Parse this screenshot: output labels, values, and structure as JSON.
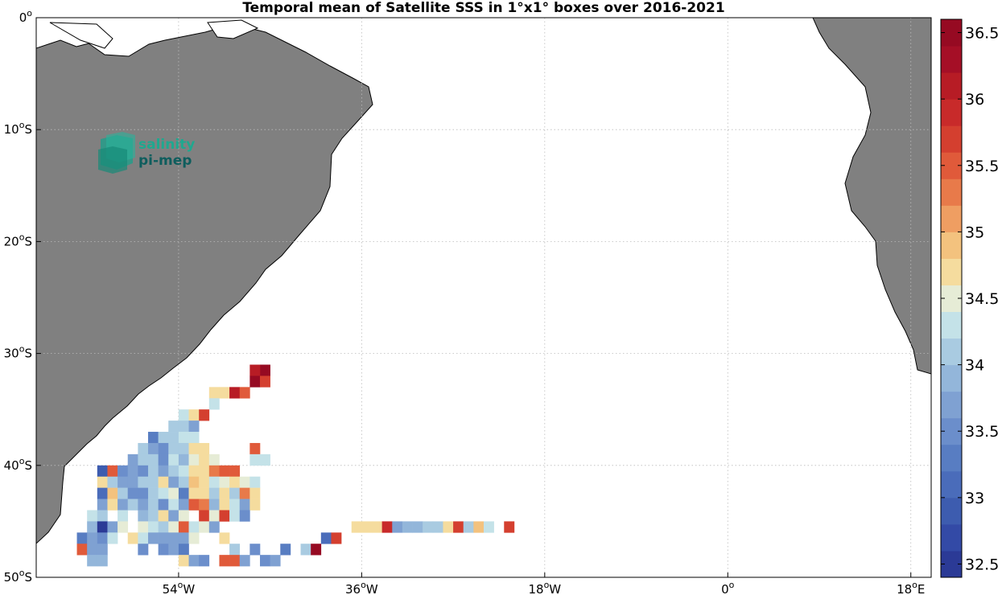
{
  "title": "Temporal mean of Satellite SSS in 1°x1° boxes over 2016-2021",
  "logo": {
    "line1": "salinity",
    "line2": "pi-mep"
  },
  "map": {
    "lon_range": [
      -68,
      20
    ],
    "lat_range": [
      -50,
      0
    ],
    "land_color": "#808080",
    "ocean_color": "#ffffff",
    "grid": "dotted",
    "x_ticks": [
      {
        "lon": -54,
        "label": "54",
        "sup": "o",
        "hemi": "W"
      },
      {
        "lon": -36,
        "label": "36",
        "sup": "o",
        "hemi": "W"
      },
      {
        "lon": -18,
        "label": "18",
        "sup": "o",
        "hemi": "W"
      },
      {
        "lon": 0,
        "label": "0",
        "sup": "o",
        "hemi": ""
      },
      {
        "lon": 18,
        "label": "18",
        "sup": "o",
        "hemi": "E"
      }
    ],
    "y_ticks": [
      {
        "lat": 0,
        "label": "0",
        "sup": "o",
        "hemi": ""
      },
      {
        "lat": -10,
        "label": "10",
        "sup": "o",
        "hemi": "S"
      },
      {
        "lat": -20,
        "label": "20",
        "sup": "o",
        "hemi": "S"
      },
      {
        "lat": -30,
        "label": "30",
        "sup": "o",
        "hemi": "S"
      },
      {
        "lat": -40,
        "label": "40",
        "sup": "o",
        "hemi": "S"
      },
      {
        "lat": -50,
        "label": "50",
        "sup": "o",
        "hemi": "S"
      }
    ]
  },
  "colorbar": {
    "min": 32.4,
    "max": 36.6,
    "step": 0.2,
    "tick_labels": [
      "32.5",
      "33",
      "33.5",
      "34",
      "34.5",
      "35",
      "35.5",
      "36",
      "36.5"
    ],
    "colors": [
      "#2b3a96",
      "#334aa6",
      "#3d5caf",
      "#4a6cba",
      "#587dc2",
      "#6b8ecb",
      "#7fa1d2",
      "#93b6da",
      "#a9cbe1",
      "#c4e2e8",
      "#e6ecd6",
      "#f5dc9e",
      "#f3c27e",
      "#ef9e62",
      "#e87a4a",
      "#e05a3a",
      "#d43f2f",
      "#c82a2a",
      "#b71c25",
      "#a50f26",
      "#960a22"
    ]
  },
  "chart_data": {
    "type": "heatmap",
    "title": "Temporal mean of Satellite SSS in 1°x1° boxes over 2016-2021",
    "value_unit": "SSS",
    "cell_size_deg": 1,
    "cells": [
      [
        -45.5,
        -31.5,
        36.6
      ],
      [
        -46.5,
        -31.5,
        36.0
      ],
      [
        -46.5,
        -32.5,
        36.5
      ],
      [
        -45.5,
        -32.5,
        35.6
      ],
      [
        -50.5,
        -33.5,
        34.6
      ],
      [
        -49.5,
        -33.5,
        34.8
      ],
      [
        -48.5,
        -33.5,
        36.1
      ],
      [
        -47.5,
        -33.5,
        35.5
      ],
      [
        -50.5,
        -34.5,
        34.3
      ],
      [
        -53.5,
        -35.5,
        34.2
      ],
      [
        -52.5,
        -35.5,
        34.6
      ],
      [
        -51.5,
        -35.5,
        35.8
      ],
      [
        -54.5,
        -36.5,
        34.0
      ],
      [
        -53.5,
        -36.5,
        34.1
      ],
      [
        -52.5,
        -36.5,
        33.7
      ],
      [
        -56.5,
        -37.5,
        33.2
      ],
      [
        -55.5,
        -37.5,
        34.1
      ],
      [
        -54.5,
        -37.5,
        34.0
      ],
      [
        -53.5,
        -37.5,
        34.2
      ],
      [
        -52.5,
        -37.5,
        34.3
      ],
      [
        -57.5,
        -38.5,
        34.0
      ],
      [
        -56.5,
        -38.5,
        33.8
      ],
      [
        -55.5,
        -38.5,
        33.5
      ],
      [
        -54.5,
        -38.5,
        34.0
      ],
      [
        -53.5,
        -38.5,
        34.1
      ],
      [
        -52.5,
        -38.5,
        34.8
      ],
      [
        -51.5,
        -38.5,
        34.6
      ],
      [
        -46.5,
        -38.5,
        35.5
      ],
      [
        -58.5,
        -39.5,
        33.6
      ],
      [
        -57.5,
        -39.5,
        34.1
      ],
      [
        -56.5,
        -39.5,
        34.0
      ],
      [
        -55.5,
        -39.5,
        33.5
      ],
      [
        -54.5,
        -39.5,
        34.2
      ],
      [
        -53.5,
        -39.5,
        33.9
      ],
      [
        -52.5,
        -39.5,
        34.5
      ],
      [
        -51.5,
        -39.5,
        34.7
      ],
      [
        -50.5,
        -39.5,
        34.4
      ],
      [
        -46.5,
        -39.5,
        34.3
      ],
      [
        -45.5,
        -39.5,
        34.2
      ],
      [
        -61.5,
        -40.5,
        32.9
      ],
      [
        -60.5,
        -40.5,
        35.5
      ],
      [
        -59.5,
        -40.5,
        33.5
      ],
      [
        -58.5,
        -40.5,
        33.6
      ],
      [
        -57.5,
        -40.5,
        33.5
      ],
      [
        -56.5,
        -40.5,
        34.0
      ],
      [
        -55.5,
        -40.5,
        33.6
      ],
      [
        -54.5,
        -40.5,
        34.1
      ],
      [
        -53.5,
        -40.5,
        34.2
      ],
      [
        -52.5,
        -40.5,
        34.7
      ],
      [
        -51.5,
        -40.5,
        34.6
      ],
      [
        -50.5,
        -40.5,
        35.3
      ],
      [
        -49.5,
        -40.5,
        35.4
      ],
      [
        -48.5,
        -40.5,
        35.4
      ],
      [
        -61.5,
        -41.5,
        34.6
      ],
      [
        -60.5,
        -41.5,
        34.0
      ],
      [
        -59.5,
        -41.5,
        33.6
      ],
      [
        -58.5,
        -41.5,
        33.7
      ],
      [
        -57.5,
        -41.5,
        34.1
      ],
      [
        -56.5,
        -41.5,
        34.0
      ],
      [
        -55.5,
        -41.5,
        34.6
      ],
      [
        -54.5,
        -41.5,
        33.8
      ],
      [
        -53.5,
        -41.5,
        34.0
      ],
      [
        -52.5,
        -41.5,
        34.9
      ],
      [
        -51.5,
        -41.5,
        34.6
      ],
      [
        -50.5,
        -41.5,
        34.3
      ],
      [
        -49.5,
        -41.5,
        34.5
      ],
      [
        -48.5,
        -41.5,
        34.6
      ],
      [
        -47.5,
        -41.5,
        34.5
      ],
      [
        -46.5,
        -41.5,
        34.3
      ],
      [
        -61.5,
        -42.5,
        33.0
      ],
      [
        -60.5,
        -42.5,
        34.9
      ],
      [
        -59.5,
        -42.5,
        34.0
      ],
      [
        -58.5,
        -42.5,
        33.4
      ],
      [
        -57.5,
        -42.5,
        33.4
      ],
      [
        -56.5,
        -42.5,
        34.1
      ],
      [
        -55.5,
        -42.5,
        34.2
      ],
      [
        -54.5,
        -42.5,
        34.4
      ],
      [
        -53.5,
        -42.5,
        33.3
      ],
      [
        -52.5,
        -42.5,
        34.8
      ],
      [
        -51.5,
        -42.5,
        34.7
      ],
      [
        -50.5,
        -42.5,
        34.1
      ],
      [
        -49.5,
        -42.5,
        34.6
      ],
      [
        -48.5,
        -42.5,
        34.1
      ],
      [
        -47.5,
        -42.5,
        35.2
      ],
      [
        -46.5,
        -42.5,
        34.6
      ],
      [
        -61.5,
        -43.5,
        33.8
      ],
      [
        -60.5,
        -43.5,
        34.7
      ],
      [
        -59.5,
        -43.5,
        33.8
      ],
      [
        -58.5,
        -43.5,
        34.1
      ],
      [
        -57.5,
        -43.5,
        33.6
      ],
      [
        -56.5,
        -43.5,
        34.0
      ],
      [
        -55.5,
        -43.5,
        33.5
      ],
      [
        -54.5,
        -43.5,
        34.2
      ],
      [
        -53.5,
        -43.5,
        33.6
      ],
      [
        -52.5,
        -43.5,
        35.4
      ],
      [
        -51.5,
        -43.5,
        35.3
      ],
      [
        -50.5,
        -43.5,
        33.9
      ],
      [
        -49.5,
        -43.5,
        34.8
      ],
      [
        -48.5,
        -43.5,
        34.3
      ],
      [
        -47.5,
        -43.5,
        33.6
      ],
      [
        -46.5,
        -43.5,
        34.6
      ],
      [
        -62.5,
        -44.5,
        34.3
      ],
      [
        -61.5,
        -44.5,
        34.0
      ],
      [
        -59.5,
        -44.5,
        34.3
      ],
      [
        -57.5,
        -44.5,
        33.9
      ],
      [
        -56.5,
        -44.5,
        34.1
      ],
      [
        -55.5,
        -44.5,
        34.6
      ],
      [
        -54.5,
        -44.5,
        33.6
      ],
      [
        -53.5,
        -44.5,
        34.4
      ],
      [
        -51.5,
        -44.5,
        35.8
      ],
      [
        -50.5,
        -44.5,
        34.5
      ],
      [
        -49.5,
        -44.5,
        35.6
      ],
      [
        -48.5,
        -44.5,
        34.3
      ],
      [
        -47.5,
        -44.5,
        33.4
      ],
      [
        -62.5,
        -45.5,
        33.9
      ],
      [
        -61.5,
        -45.5,
        32.5
      ],
      [
        -60.5,
        -45.5,
        33.8
      ],
      [
        -59.5,
        -45.5,
        34.4
      ],
      [
        -57.5,
        -45.5,
        34.4
      ],
      [
        -56.5,
        -45.5,
        34.2
      ],
      [
        -55.5,
        -45.5,
        34.1
      ],
      [
        -54.5,
        -45.5,
        34.5
      ],
      [
        -53.5,
        -45.5,
        35.4
      ],
      [
        -52.5,
        -45.5,
        34.3
      ],
      [
        -51.5,
        -45.5,
        34.4
      ],
      [
        -50.5,
        -45.5,
        33.6
      ],
      [
        -36.5,
        -45.5,
        34.6
      ],
      [
        -35.5,
        -45.5,
        34.8
      ],
      [
        -34.5,
        -45.5,
        34.6
      ],
      [
        -33.5,
        -45.5,
        35.9
      ],
      [
        -32.5,
        -45.5,
        33.7
      ],
      [
        -31.5,
        -45.5,
        33.9
      ],
      [
        -30.5,
        -45.5,
        33.9
      ],
      [
        -29.5,
        -45.5,
        34.0
      ],
      [
        -28.5,
        -45.5,
        34.0
      ],
      [
        -27.5,
        -45.5,
        34.6
      ],
      [
        -26.5,
        -45.5,
        35.6
      ],
      [
        -25.5,
        -45.5,
        34.1
      ],
      [
        -24.5,
        -45.5,
        34.9
      ],
      [
        -23.5,
        -45.5,
        34.3
      ],
      [
        -21.5,
        -45.5,
        35.6
      ],
      [
        -63.5,
        -46.5,
        33.3
      ],
      [
        -62.5,
        -46.5,
        33.6
      ],
      [
        -61.5,
        -46.5,
        33.5
      ],
      [
        -60.5,
        -46.5,
        34.2
      ],
      [
        -58.5,
        -46.5,
        34.7
      ],
      [
        -57.5,
        -46.5,
        34.3
      ],
      [
        -56.5,
        -46.5,
        33.8
      ],
      [
        -55.5,
        -46.5,
        33.7
      ],
      [
        -54.5,
        -46.5,
        33.7
      ],
      [
        -53.5,
        -46.5,
        33.6
      ],
      [
        -52.5,
        -46.5,
        34.5
      ],
      [
        -49.5,
        -46.5,
        34.7
      ],
      [
        -39.5,
        -46.5,
        33.1
      ],
      [
        -38.5,
        -46.5,
        35.7
      ],
      [
        -63.5,
        -47.5,
        35.4
      ],
      [
        -62.5,
        -47.5,
        33.8
      ],
      [
        -61.5,
        -47.5,
        33.6
      ],
      [
        -57.5,
        -47.5,
        33.4
      ],
      [
        -55.5,
        -47.5,
        33.5
      ],
      [
        -54.5,
        -47.5,
        33.8
      ],
      [
        -53.5,
        -47.5,
        33.3
      ],
      [
        -48.5,
        -47.5,
        34.0
      ],
      [
        -46.5,
        -47.5,
        33.5
      ],
      [
        -43.5,
        -47.5,
        33.3
      ],
      [
        -41.5,
        -47.5,
        34.1
      ],
      [
        -40.5,
        -47.5,
        36.5
      ],
      [
        -62.5,
        -48.5,
        33.9
      ],
      [
        -61.5,
        -48.5,
        33.9
      ],
      [
        -53.5,
        -48.5,
        34.6
      ],
      [
        -52.5,
        -48.5,
        33.8
      ],
      [
        -51.5,
        -48.5,
        33.4
      ],
      [
        -49.5,
        -48.5,
        35.4
      ],
      [
        -48.5,
        -48.5,
        35.4
      ],
      [
        -47.5,
        -48.5,
        33.7
      ],
      [
        -45.5,
        -48.5,
        33.4
      ],
      [
        -44.5,
        -48.5,
        33.7
      ]
    ]
  }
}
